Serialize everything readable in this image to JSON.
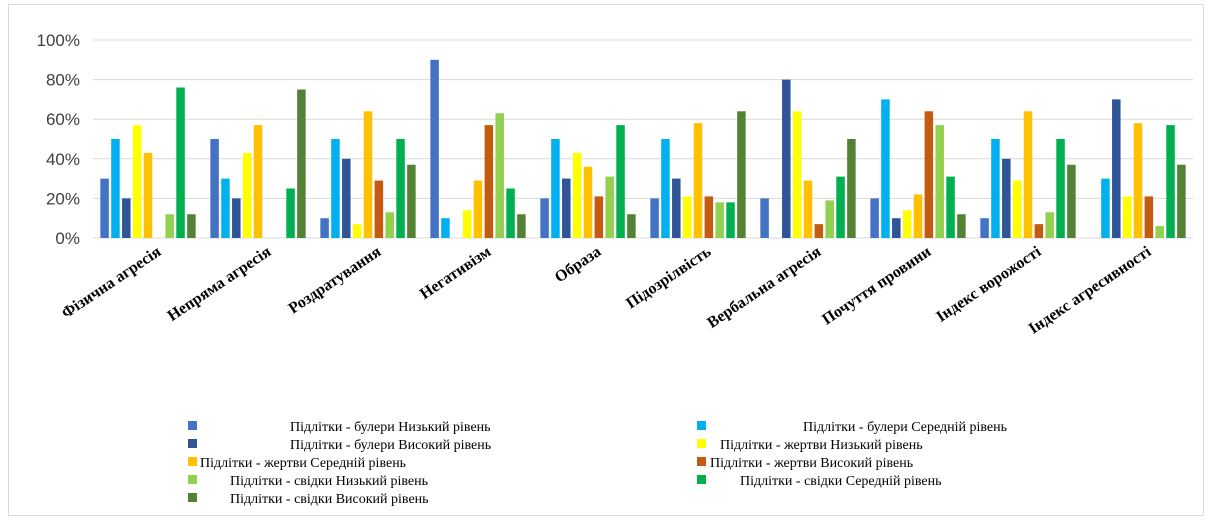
{
  "chart_data": {
    "type": "bar",
    "title": "",
    "xlabel": "",
    "ylabel": "",
    "ylim": [
      0,
      100
    ],
    "y_ticks": [
      "0%",
      "20%",
      "40%",
      "60%",
      "80%",
      "100%"
    ],
    "grid": true,
    "legend_position": "bottom",
    "categories": [
      "Фізична агресія",
      "Непряма агресія",
      "Роздратування",
      "Негативізм",
      "Образа",
      "Підозрілвість",
      "Вербальна агресія",
      "Почуття провини",
      "Індекс  ворожості",
      "Індекс агресивності"
    ],
    "series": [
      {
        "name": "Підлітки - булери Низький рівень",
        "color": "#4472C4",
        "values": [
          30,
          50,
          10,
          90,
          20,
          20,
          20,
          20,
          10,
          0
        ]
      },
      {
        "name": "Підлітки - булери Середній рівень",
        "color": "#00B0F0",
        "values": [
          50,
          30,
          50,
          10,
          50,
          50,
          0,
          70,
          50,
          30
        ]
      },
      {
        "name": "Підлітки - булери Високий рівень",
        "color": "#2F5597",
        "values": [
          20,
          20,
          40,
          0,
          30,
          30,
          80,
          10,
          40,
          70
        ]
      },
      {
        "name": "Підлітки  - жертви    Низький рівень",
        "color": "#FFFF00",
        "values": [
          57,
          43,
          7,
          14,
          43,
          21,
          64,
          14,
          29,
          21
        ]
      },
      {
        "name": "Підлітки   - жертви    Середній рівень",
        "color": "#FFC000",
        "values": [
          43,
          57,
          64,
          29,
          36,
          58,
          29,
          22,
          64,
          58
        ]
      },
      {
        "name": "Підлітки   - жертви    Високий рівень",
        "color": "#C55A11",
        "values": [
          0,
          0,
          29,
          57,
          21,
          21,
          7,
          64,
          7,
          21
        ]
      },
      {
        "name": "Підлітки  - свідки    Низький рівень",
        "color": "#92D050",
        "values": [
          12,
          0,
          13,
          63,
          31,
          18,
          19,
          57,
          13,
          6
        ]
      },
      {
        "name": "Підлітки  - свідки    Середній рівень",
        "color": "#00B050",
        "values": [
          76,
          25,
          50,
          25,
          57,
          18,
          31,
          31,
          50,
          57
        ]
      },
      {
        "name": "Підлітки  - свідки    Високий рівень",
        "color": "#548235",
        "values": [
          12,
          75,
          37,
          12,
          12,
          64,
          50,
          12,
          37,
          37
        ]
      }
    ]
  }
}
